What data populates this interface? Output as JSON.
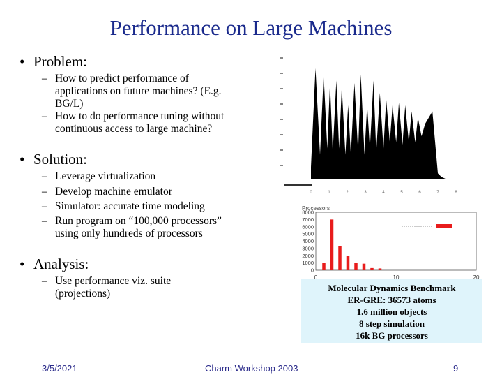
{
  "slide": {
    "title": "Performance on Large Machines",
    "bullets": [
      {
        "label": "Problem:",
        "items": [
          "How to predict performance of applications on future machines? (E.g. BG/L)",
          "How to do performance tuning without continuous access to large machine?"
        ]
      },
      {
        "label": "Solution:",
        "items": [
          "Leverage virtualization",
          "Develop machine emulator",
          "Simulator: accurate time modeling",
          "Run program on “100,000 processors” using only hundreds of processors"
        ]
      },
      {
        "label": "Analysis:",
        "items": [
          "Use performance viz. suite (projections)"
        ]
      }
    ],
    "caption": [
      "Molecular Dynamics Benchmark",
      "ER-GRE: 36573 atoms",
      "1.6 million objects",
      "8 step simulation",
      "16k BG processors"
    ],
    "footer": {
      "date": "3/5/2021",
      "center": "Charm Workshop 2003",
      "page": "9"
    }
  },
  "chart_data": [
    {
      "type": "area",
      "title": "",
      "xlabel": "",
      "ylabel": "",
      "color": "#000000",
      "x_tick_labels": [
        "0",
        "1",
        "2",
        "3",
        "4",
        "5",
        "6",
        "7",
        "8"
      ],
      "x": [
        0,
        0.25,
        0.5,
        0.7,
        0.9,
        1.05,
        1.2,
        1.4,
        1.55,
        1.7,
        1.9,
        2.05,
        2.2,
        2.4,
        2.6,
        2.75,
        2.95,
        3.1,
        3.25,
        3.45,
        3.6,
        3.8,
        4.0,
        4.15,
        4.35,
        4.5,
        4.7,
        4.85,
        5.05,
        5.2,
        5.4,
        5.55,
        5.75,
        5.9,
        6.1,
        6.3,
        6.5,
        6.7,
        6.85,
        7.0,
        7.2,
        7.5,
        8.0
      ],
      "values": [
        0.1,
        0.9,
        0.2,
        0.85,
        0.25,
        0.78,
        0.22,
        0.8,
        0.25,
        0.75,
        0.2,
        0.6,
        0.2,
        0.78,
        0.22,
        0.85,
        0.2,
        0.6,
        0.25,
        0.8,
        0.22,
        0.7,
        0.25,
        0.65,
        0.3,
        0.6,
        0.3,
        0.62,
        0.28,
        0.6,
        0.3,
        0.55,
        0.3,
        0.5,
        0.35,
        0.45,
        0.5,
        0.55,
        0.3,
        0.05,
        0.02,
        0.0,
        0.0
      ]
    },
    {
      "type": "bar",
      "title": "",
      "ylabel": "Processors",
      "xlabel": "",
      "y_tick_labels": [
        "0",
        "1000",
        "2000",
        "3000",
        "4000",
        "5000",
        "6000",
        "7000",
        "8000"
      ],
      "x_tick_labels": [
        "0",
        "10",
        "20"
      ],
      "xlim": [
        0,
        20
      ],
      "ylim": [
        0,
        8000
      ],
      "color": "#e81c1c",
      "x": [
        1,
        2,
        3,
        4,
        5,
        6,
        7,
        8
      ],
      "values": [
        1000,
        7000,
        3300,
        2000,
        1000,
        900,
        300,
        250
      ]
    }
  ]
}
